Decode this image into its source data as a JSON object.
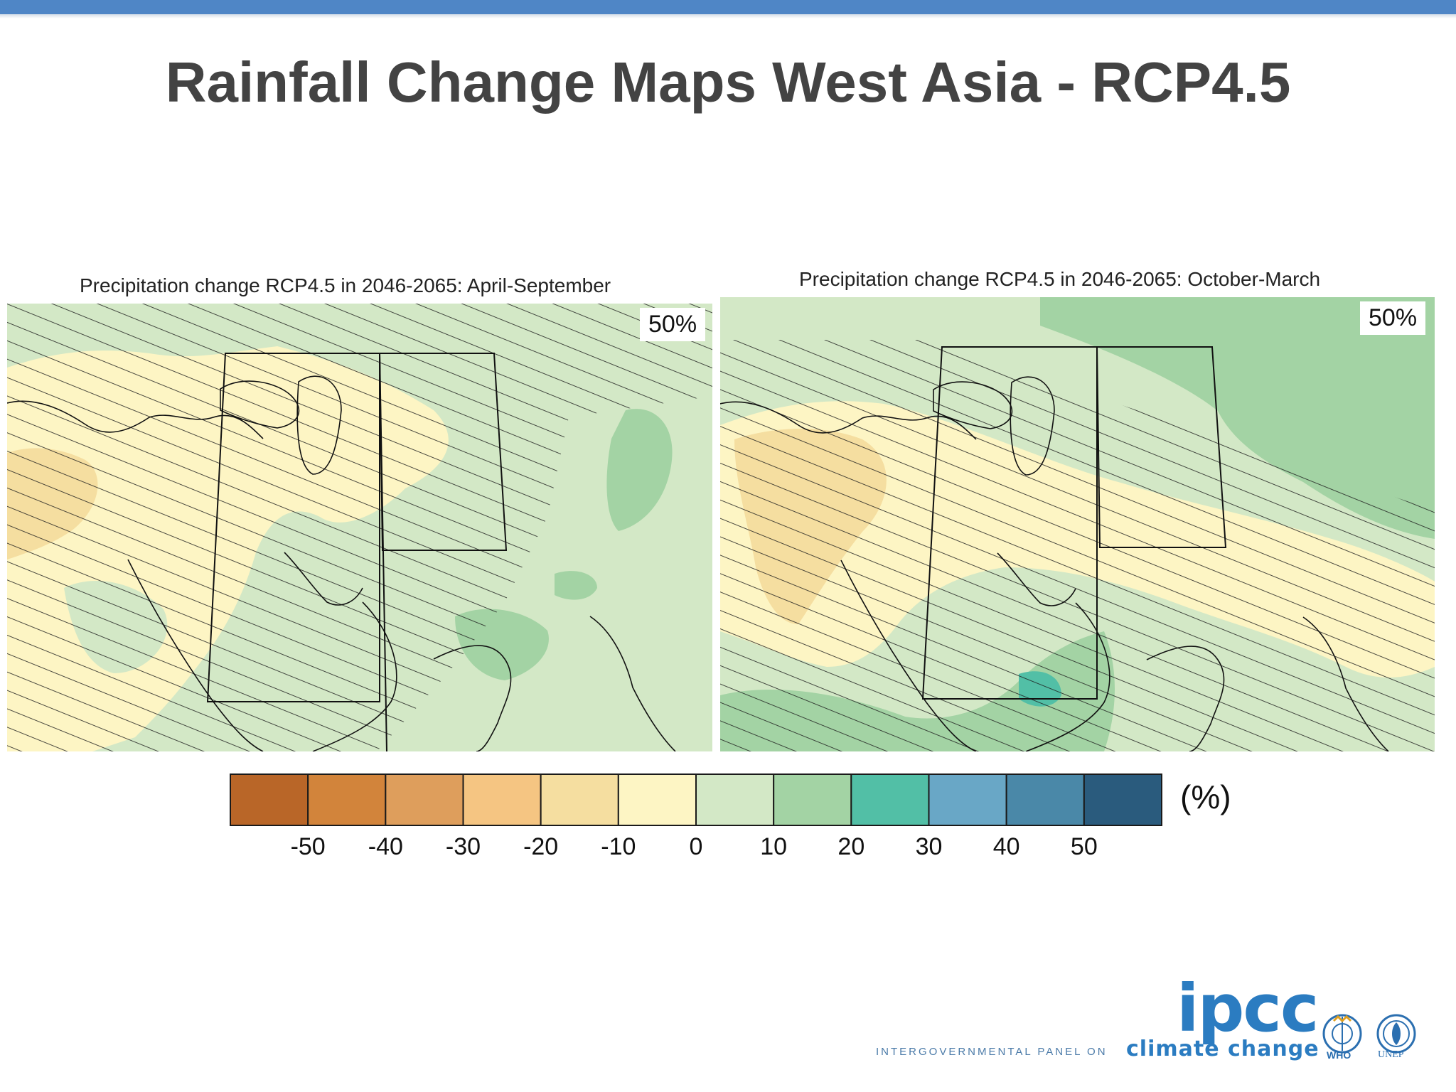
{
  "slide": {
    "title": "Rainfall Change Maps West Asia - RCP4.5"
  },
  "maps": [
    {
      "title": "Precipitation change RCP4.5 in 2046-2065: April-September",
      "percentile": "50%"
    },
    {
      "title": "Precipitation change RCP4.5 in 2046-2065: October-March",
      "percentile": "50%"
    }
  ],
  "legend": {
    "unit": "(%)",
    "colors": [
      "#b96628",
      "#d2843b",
      "#de9e5c",
      "#f5c582",
      "#f5dea0",
      "#fdf5c4",
      "#d3e8c6",
      "#a3d3a4",
      "#52bfa6",
      "#69a7c6",
      "#4a88a8",
      "#2a5b7d"
    ],
    "tick_labels": [
      "-50",
      "-40",
      "-30",
      "-20",
      "-10",
      "0",
      "10",
      "20",
      "30",
      "40",
      "50"
    ]
  },
  "footer": {
    "logo": "ipcc",
    "tagline_left": "INTERGOVERNMENTAL PANEL ON",
    "tagline_right": "climate change",
    "partner_1": "WHO",
    "partner_2": "UNEP"
  },
  "colors": {
    "top_bar": "#4f86c6",
    "title_text": "#434343",
    "ipcc_blue": "#2b7cc1"
  }
}
